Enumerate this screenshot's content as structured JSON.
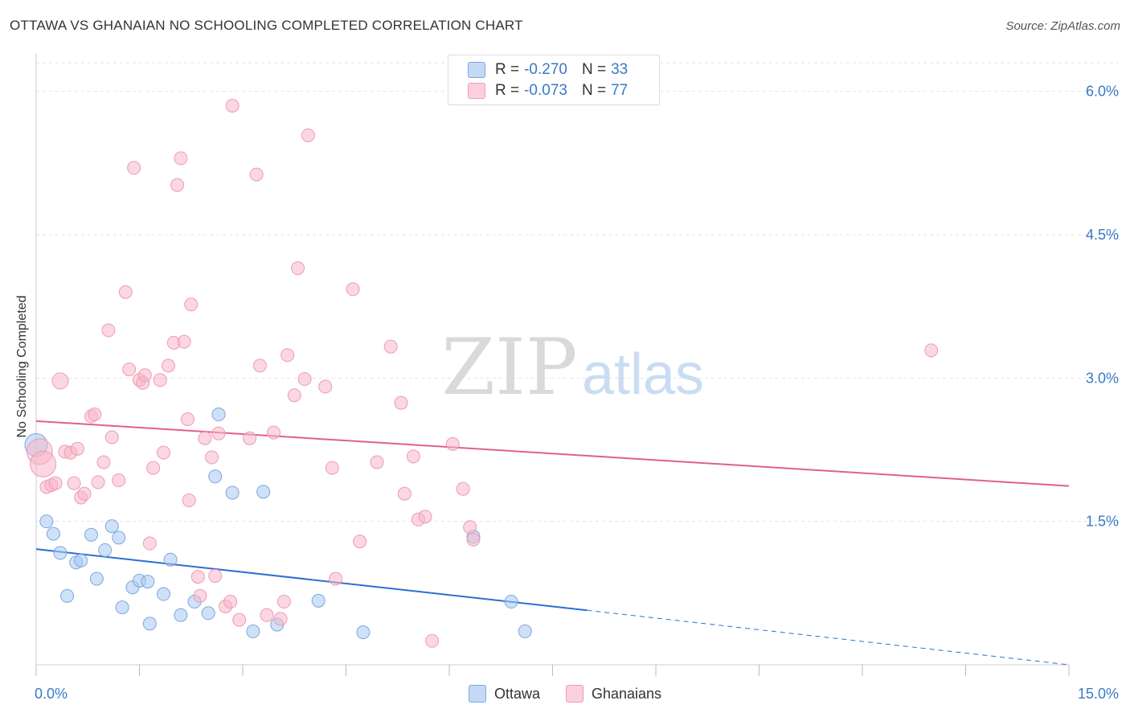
{
  "chart_data": {
    "type": "scatter",
    "title": "OTTAWA VS GHANAIAN NO SCHOOLING COMPLETED CORRELATION CHART",
    "source": "Source: ZipAtlas.com",
    "xlabel": "",
    "ylabel": "No Schooling Completed",
    "xlim": [
      0,
      15
    ],
    "ylim": [
      0,
      6.3
    ],
    "x_tick_labels": [
      "0.0%",
      "15.0%"
    ],
    "y_ticks": [
      1.5,
      3.0,
      4.5,
      6.0
    ],
    "y_tick_labels": [
      "1.5%",
      "3.0%",
      "4.5%",
      "6.0%"
    ],
    "watermark": {
      "zip": "ZIP",
      "atlas": "atlas"
    },
    "legend_stats": [
      {
        "r_label": "R =",
        "r": "-0.270",
        "n_label": "N =",
        "n": "33"
      },
      {
        "r_label": "R =",
        "r": "-0.073",
        "n_label": "N =",
        "n": "77"
      }
    ],
    "series": [
      {
        "name": "Ottawa",
        "color": "#a8c8f0",
        "line_color": "#2b6fd1",
        "trend": {
          "x0": 0,
          "y0": 1.21,
          "x1": 8.0,
          "y1": 0.57,
          "dash_x1": 15,
          "dash_y1": 0.0
        },
        "points": [
          [
            0.0,
            2.3
          ],
          [
            0.15,
            1.5
          ],
          [
            0.25,
            1.37
          ],
          [
            0.35,
            1.17
          ],
          [
            0.45,
            0.72
          ],
          [
            0.58,
            1.07
          ],
          [
            0.65,
            1.09
          ],
          [
            0.8,
            1.36
          ],
          [
            0.88,
            0.9
          ],
          [
            1.0,
            1.2
          ],
          [
            1.1,
            1.45
          ],
          [
            1.2,
            1.33
          ],
          [
            1.25,
            0.6
          ],
          [
            1.4,
            0.81
          ],
          [
            1.5,
            0.88
          ],
          [
            1.62,
            0.87
          ],
          [
            1.65,
            0.43
          ],
          [
            1.85,
            0.74
          ],
          [
            1.95,
            1.1
          ],
          [
            2.1,
            0.52
          ],
          [
            2.3,
            0.66
          ],
          [
            2.5,
            0.54
          ],
          [
            2.6,
            1.97
          ],
          [
            2.65,
            2.62
          ],
          [
            2.85,
            1.8
          ],
          [
            3.15,
            0.35
          ],
          [
            3.3,
            1.81
          ],
          [
            3.5,
            0.42
          ],
          [
            4.1,
            0.67
          ],
          [
            4.75,
            0.34
          ],
          [
            6.35,
            1.34
          ],
          [
            6.9,
            0.66
          ],
          [
            7.1,
            0.35
          ]
        ],
        "sizes": [
          14,
          8,
          8,
          8,
          8,
          8,
          8,
          8,
          8,
          8,
          8,
          8,
          8,
          8,
          8,
          8,
          8,
          8,
          8,
          8,
          8,
          8,
          8,
          8,
          8,
          8,
          8,
          8,
          8,
          8,
          8,
          8,
          8
        ]
      },
      {
        "name": "Ghanaians",
        "color": "#f7b6c8",
        "line_color": "#e0608a",
        "trend": {
          "x0": 0,
          "y0": 2.55,
          "x1": 15,
          "y1": 1.87
        },
        "points": [
          [
            0.05,
            2.23
          ],
          [
            0.1,
            2.1
          ],
          [
            0.15,
            1.86
          ],
          [
            0.22,
            1.88
          ],
          [
            0.28,
            1.9
          ],
          [
            0.35,
            2.97
          ],
          [
            0.42,
            2.23
          ],
          [
            0.5,
            2.22
          ],
          [
            0.55,
            1.9
          ],
          [
            0.6,
            2.26
          ],
          [
            0.65,
            1.75
          ],
          [
            0.7,
            1.79
          ],
          [
            0.8,
            2.6
          ],
          [
            0.85,
            2.62
          ],
          [
            0.9,
            1.91
          ],
          [
            0.98,
            2.12
          ],
          [
            1.05,
            3.5
          ],
          [
            1.1,
            2.38
          ],
          [
            1.2,
            1.93
          ],
          [
            1.3,
            3.9
          ],
          [
            1.35,
            3.09
          ],
          [
            1.42,
            5.2
          ],
          [
            1.5,
            2.98
          ],
          [
            1.55,
            2.95
          ],
          [
            1.58,
            3.03
          ],
          [
            1.65,
            1.27
          ],
          [
            1.7,
            2.06
          ],
          [
            1.8,
            2.98
          ],
          [
            1.85,
            2.22
          ],
          [
            1.92,
            3.13
          ],
          [
            2.0,
            3.37
          ],
          [
            2.05,
            5.02
          ],
          [
            2.1,
            5.3
          ],
          [
            2.15,
            3.38
          ],
          [
            2.2,
            2.57
          ],
          [
            2.22,
            1.72
          ],
          [
            2.25,
            3.77
          ],
          [
            2.35,
            0.92
          ],
          [
            2.38,
            0.72
          ],
          [
            2.45,
            2.37
          ],
          [
            2.55,
            2.17
          ],
          [
            2.6,
            0.93
          ],
          [
            2.65,
            2.42
          ],
          [
            2.75,
            0.61
          ],
          [
            2.82,
            0.66
          ],
          [
            2.85,
            5.85
          ],
          [
            2.95,
            0.47
          ],
          [
            3.1,
            2.37
          ],
          [
            3.2,
            5.13
          ],
          [
            3.25,
            3.13
          ],
          [
            3.35,
            0.52
          ],
          [
            3.45,
            2.43
          ],
          [
            3.55,
            0.48
          ],
          [
            3.6,
            0.66
          ],
          [
            3.65,
            3.24
          ],
          [
            3.75,
            2.82
          ],
          [
            3.8,
            4.15
          ],
          [
            3.9,
            2.99
          ],
          [
            3.95,
            5.54
          ],
          [
            4.2,
            2.91
          ],
          [
            4.3,
            2.06
          ],
          [
            4.35,
            0.9
          ],
          [
            4.6,
            3.93
          ],
          [
            4.7,
            1.29
          ],
          [
            4.95,
            2.12
          ],
          [
            5.15,
            3.33
          ],
          [
            5.3,
            2.74
          ],
          [
            5.35,
            1.79
          ],
          [
            5.48,
            2.18
          ],
          [
            5.55,
            1.52
          ],
          [
            5.65,
            1.55
          ],
          [
            5.75,
            0.25
          ],
          [
            6.05,
            2.31
          ],
          [
            6.2,
            1.84
          ],
          [
            6.3,
            1.44
          ],
          [
            6.35,
            1.31
          ],
          [
            13.0,
            3.29
          ]
        ],
        "sizes": [
          16,
          16,
          8,
          8,
          8,
          10,
          8,
          8,
          8,
          8,
          8,
          8,
          8,
          8,
          8,
          8,
          8,
          8,
          8,
          8,
          8,
          8,
          8,
          8,
          8,
          8,
          8,
          8,
          8,
          8,
          8,
          8,
          8,
          8,
          8,
          8,
          8,
          8,
          8,
          8,
          8,
          8,
          8,
          8,
          8,
          8,
          8,
          8,
          8,
          8,
          8,
          8,
          8,
          8,
          8,
          8,
          8,
          8,
          8,
          8,
          8,
          8,
          8,
          8,
          8,
          8,
          8,
          8,
          8,
          8,
          8,
          8,
          8,
          8,
          8,
          8,
          8
        ]
      }
    ]
  }
}
